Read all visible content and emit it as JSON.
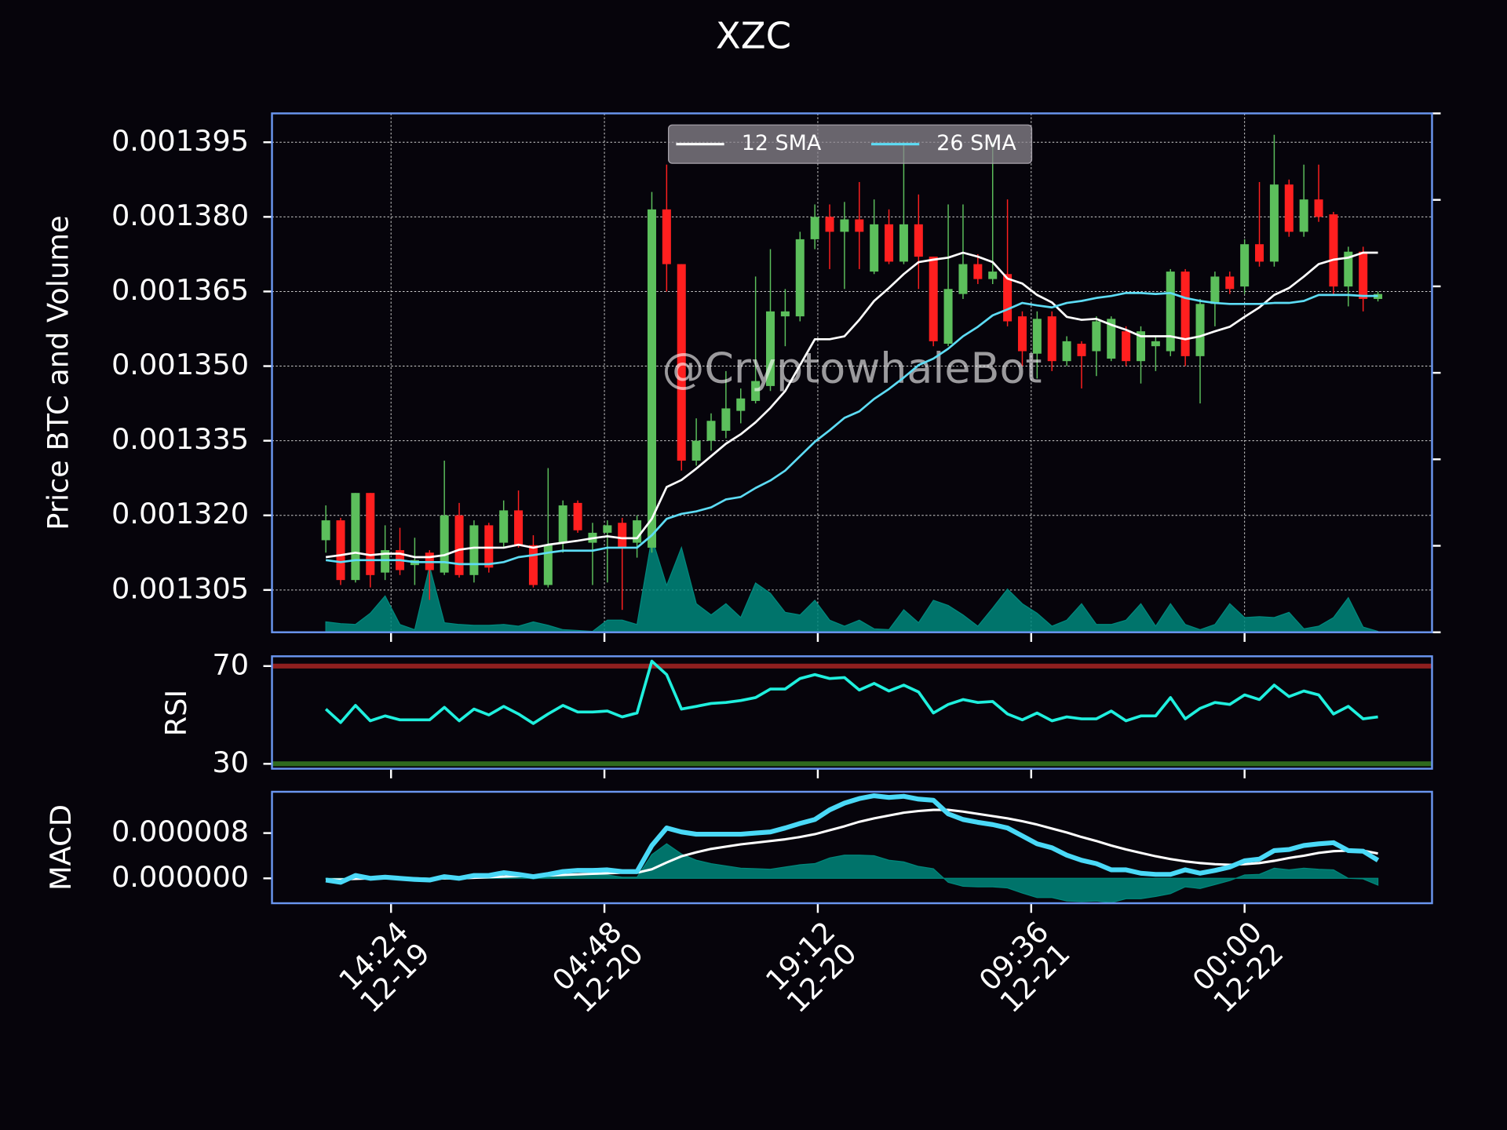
{
  "chart_data": [
    {
      "type": "candlestick",
      "title": "XZC",
      "ylabel": "Price BTC and Volume",
      "annotation": "@CryptowhaleBot",
      "x": [
        "12-19 10:00",
        "12-19 11:00",
        "12-19 12:00",
        "12-19 13:00",
        "12-19 14:00",
        "12-19 15:00",
        "12-19 16:00",
        "12-19 17:00",
        "12-19 18:00",
        "12-19 19:00",
        "12-19 20:00",
        "12-19 21:00",
        "12-19 22:00",
        "12-19 23:00",
        "12-20 00:00",
        "12-20 01:00",
        "12-20 02:00",
        "12-20 03:00",
        "12-20 04:00",
        "12-20 05:00",
        "12-20 06:00",
        "12-20 07:00",
        "12-20 08:00",
        "12-20 09:00",
        "12-20 10:00",
        "12-20 11:00",
        "12-20 12:00",
        "12-20 13:00",
        "12-20 14:00",
        "12-20 15:00",
        "12-20 16:00",
        "12-20 17:00",
        "12-20 18:00",
        "12-20 19:00",
        "12-20 20:00",
        "12-20 21:00",
        "12-20 22:00",
        "12-20 23:00",
        "12-21 00:00",
        "12-21 01:00",
        "12-21 02:00",
        "12-21 03:00",
        "12-21 04:00",
        "12-21 05:00",
        "12-21 06:00",
        "12-21 07:00",
        "12-21 08:00",
        "12-21 09:00",
        "12-21 10:00",
        "12-21 11:00",
        "12-21 12:00",
        "12-21 13:00",
        "12-21 14:00",
        "12-21 15:00",
        "12-21 16:00",
        "12-21 17:00",
        "12-21 18:00",
        "12-21 19:00",
        "12-21 20:00",
        "12-21 21:00",
        "12-21 22:00",
        "12-21 23:00",
        "12-22 00:00",
        "12-22 01:00",
        "12-22 02:00",
        "12-22 03:00",
        "12-22 04:00",
        "12-22 05:00",
        "12-22 06:00",
        "12-22 07:00",
        "12-22 08:00",
        "12-22 09:00"
      ],
      "open": [
        0.001315,
        0.001319,
        0.001307,
        0.0013245,
        0.0013085,
        0.001313,
        0.00131,
        0.0013125,
        0.0013085,
        0.00132,
        0.001308,
        0.001318,
        0.0013145,
        0.001321,
        0.001314,
        0.001306,
        0.0013145,
        0.0013225,
        0.0013145,
        0.0013165,
        0.0013185,
        0.0013145,
        0.0013135,
        0.0013815,
        0.0013705,
        0.001331,
        0.001335,
        0.001337,
        0.001341,
        0.001343,
        0.001346,
        0.00136,
        0.00136,
        0.0013755,
        0.00138,
        0.001377,
        0.0013795,
        0.001369,
        0.0013785,
        0.001371,
        0.0013785,
        0.001372,
        0.0013545,
        0.0013645,
        0.0013705,
        0.0013675,
        0.0013685,
        0.00136,
        0.0013525,
        0.00136,
        0.001351,
        0.0013545,
        0.001353,
        0.0013515,
        0.001357,
        0.001351,
        0.001354,
        0.001353,
        0.001369,
        0.001352,
        0.0013625,
        0.001368,
        0.001366,
        0.0013745,
        0.001371,
        0.0013865,
        0.001377,
        0.0013835,
        0.0013805,
        0.001366,
        0.001373,
        0.0013635
      ],
      "high": [
        0.001322,
        0.0013195,
        0.0013245,
        0.0013245,
        0.001318,
        0.0013175,
        0.0013155,
        0.001313,
        0.001331,
        0.0013225,
        0.001319,
        0.0013185,
        0.001323,
        0.001325,
        0.001316,
        0.0013295,
        0.001323,
        0.001323,
        0.0013185,
        0.001319,
        0.0013195,
        0.00132,
        0.001385,
        0.0013905,
        0.0013705,
        0.0013395,
        0.0013405,
        0.001349,
        0.0013455,
        0.001368,
        0.0013735,
        0.0013655,
        0.001377,
        0.0013825,
        0.0013825,
        0.001383,
        0.001387,
        0.0013835,
        0.0013815,
        0.001395,
        0.0013845,
        0.001372,
        0.0013825,
        0.0013825,
        0.0013725,
        0.001395,
        0.0013835,
        0.001361,
        0.001361,
        0.001361,
        0.001356,
        0.001355,
        0.00136,
        0.00136,
        0.001358,
        0.001358,
        0.001356,
        0.0013695,
        0.0013695,
        0.0013635,
        0.001369,
        0.001369,
        0.0013755,
        0.001387,
        0.0013965,
        0.0013875,
        0.0013905,
        0.0013905,
        0.001381,
        0.001374,
        0.001374,
        0.001365
      ],
      "low": [
        0.0013125,
        0.001306,
        0.0013065,
        0.0013055,
        0.001307,
        0.001308,
        0.001306,
        0.001303,
        0.001308,
        0.0013075,
        0.0013065,
        0.0013085,
        0.0013135,
        0.0013135,
        0.0013055,
        0.0013055,
        0.0013125,
        0.0013165,
        0.001306,
        0.0013065,
        0.001301,
        0.0013115,
        0.0013125,
        0.001365,
        0.001329,
        0.00133,
        0.001333,
        0.0013355,
        0.0013385,
        0.0013425,
        0.001345,
        0.001354,
        0.001359,
        0.0013735,
        0.0013695,
        0.0013655,
        0.0013695,
        0.0013685,
        0.0013705,
        0.0013705,
        0.0013655,
        0.001354,
        0.001354,
        0.0013635,
        0.0013665,
        0.0013665,
        0.001358,
        0.00135,
        0.0013475,
        0.001349,
        0.00135,
        0.0013455,
        0.001348,
        0.001351,
        0.00135,
        0.0013465,
        0.001349,
        0.001352,
        0.00135,
        0.0013425,
        0.001358,
        0.0013645,
        0.0013645,
        0.00137,
        0.00137,
        0.001376,
        0.001376,
        0.001379,
        0.0013645,
        0.001362,
        0.001361,
        0.001363
      ],
      "close": [
        0.001319,
        0.001307,
        0.0013245,
        0.001308,
        0.001313,
        0.001309,
        0.001311,
        0.001309,
        0.00132,
        0.001308,
        0.001318,
        0.0013095,
        0.001321,
        0.001314,
        0.001306,
        0.001314,
        0.001322,
        0.001317,
        0.0013165,
        0.001318,
        0.0013135,
        0.001319,
        0.0013815,
        0.0013705,
        0.001331,
        0.001335,
        0.001339,
        0.0013415,
        0.0013435,
        0.001347,
        0.001361,
        0.001361,
        0.0013755,
        0.00138,
        0.001377,
        0.0013795,
        0.001377,
        0.0013785,
        0.001371,
        0.0013785,
        0.001372,
        0.001355,
        0.0013655,
        0.0013705,
        0.0013675,
        0.001369,
        0.001359,
        0.001353,
        0.0013595,
        0.001351,
        0.001355,
        0.001352,
        0.001359,
        0.0013595,
        0.001351,
        0.001357,
        0.001355,
        0.001369,
        0.001352,
        0.0013625,
        0.001368,
        0.0013655,
        0.0013745,
        0.001371,
        0.0013865,
        0.001377,
        0.0013835,
        0.00138,
        0.001366,
        0.001373,
        0.0013635,
        0.0013645
      ],
      "up_color": "#5cbf5c",
      "down_color": "#ff1f1f",
      "series": [
        {
          "name": "12 SMA",
          "color": "#ffffff",
          "values": [
            0.0013116,
            0.001312,
            0.0013125,
            0.001312,
            0.0013123,
            0.0013123,
            0.0013116,
            0.0013116,
            0.001312,
            0.0013131,
            0.0013135,
            0.0013135,
            0.0013135,
            0.0013141,
            0.0013135,
            0.0013141,
            0.0013145,
            0.0013149,
            0.0013154,
            0.0013158,
            0.0013154,
            0.0013154,
            0.0013193,
            0.0013257,
            0.0013271,
            0.0013294,
            0.0013319,
            0.0013344,
            0.0013363,
            0.0013387,
            0.0013416,
            0.001345,
            0.0013502,
            0.0013554,
            0.0013554,
            0.001356,
            0.0013593,
            0.0013631,
            0.0013657,
            0.0013685,
            0.0013709,
            0.0013714,
            0.0013718,
            0.0013728,
            0.001372,
            0.0013709,
            0.0013676,
            0.0013666,
            0.0013643,
            0.0013628,
            0.0013599,
            0.0013593,
            0.0013595,
            0.0013583,
            0.0013573,
            0.001356,
            0.001356,
            0.001356,
            0.0013554,
            0.001356,
            0.001357,
            0.0013579,
            0.0013599,
            0.0013618,
            0.0013643,
            0.0013657,
            0.001368,
            0.0013705,
            0.0013714,
            0.0013718,
            0.0013728,
            0.0013728
          ]
        },
        {
          "name": "26 SMA",
          "color": "#5ddcf5",
          "values": [
            0.001311,
            0.0013106,
            0.001311,
            0.001311,
            0.001311,
            0.001311,
            0.0013106,
            0.0013106,
            0.0013106,
            0.0013102,
            0.0013102,
            0.0013102,
            0.0013106,
            0.0013116,
            0.001312,
            0.0013125,
            0.0013129,
            0.0013129,
            0.0013129,
            0.0013135,
            0.0013135,
            0.0013135,
            0.001316,
            0.0013193,
            0.0013203,
            0.0013208,
            0.0013216,
            0.0013232,
            0.0013237,
            0.0013255,
            0.001327,
            0.001329,
            0.0013319,
            0.0013348,
            0.0013371,
            0.0013396,
            0.0013409,
            0.0013434,
            0.0013454,
            0.0013477,
            0.0013502,
            0.0013515,
            0.0013535,
            0.001356,
            0.0013579,
            0.0013602,
            0.0013614,
            0.0013627,
            0.0013622,
            0.0013618,
            0.0013627,
            0.0013631,
            0.0013637,
            0.0013641,
            0.0013647,
            0.0013647,
            0.0013645,
            0.0013647,
            0.0013637,
            0.0013631,
            0.0013627,
            0.0013625,
            0.0013625,
            0.0013625,
            0.0013627,
            0.0013627,
            0.0013631,
            0.0013643,
            0.0013643,
            0.0013643,
            0.0013641,
            0.0013641
          ]
        }
      ],
      "volume": {
        "axis": "y2",
        "color": "#00887d",
        "values": [
          0.12,
          0.1,
          0.09,
          0.22,
          0.42,
          0.09,
          0.03,
          0.76,
          0.11,
          0.09,
          0.08,
          0.08,
          0.09,
          0.07,
          0.12,
          0.08,
          0.03,
          0.02,
          0.01,
          0.14,
          0.14,
          0.09,
          1.09,
          0.54,
          0.98,
          0.33,
          0.2,
          0.33,
          0.17,
          0.57,
          0.45,
          0.23,
          0.2,
          0.37,
          0.14,
          0.07,
          0.14,
          0.04,
          0.03,
          0.26,
          0.11,
          0.37,
          0.31,
          0.2,
          0.07,
          0.28,
          0.5,
          0.33,
          0.22,
          0.07,
          0.14,
          0.33,
          0.09,
          0.09,
          0.14,
          0.33,
          0.07,
          0.33,
          0.09,
          0.03,
          0.09,
          0.33,
          0.17,
          0.18,
          0.17,
          0.23,
          0.04,
          0.07,
          0.17,
          0.4,
          0.06,
          0.01
        ]
      },
      "xlim": [
        "12-19 06:22",
        "12-22 12:39"
      ],
      "ylim": [
        0.0012965,
        0.0014008
      ],
      "yticks": [
        0.001305,
        0.001335,
        {
          "value": 0.00132,
          "label": "0.001320"
        },
        {
          "value": 0.00135,
          "label": "0.001350"
        },
        0.001365,
        {
          "value": 0.00138,
          "label": "0.001380"
        },
        0.001395
      ],
      "y2lim": [
        0,
        6
      ],
      "y2ticks": [
        0,
        1,
        2,
        3,
        4,
        5,
        6
      ],
      "grid": true,
      "legend": "upper center"
    },
    {
      "type": "line",
      "ylabel": "RSI",
      "ylim": [
        28,
        74
      ],
      "yticks": [
        30,
        70
      ],
      "hlines": [
        {
          "value": 70,
          "color": "#8e1f1f"
        },
        {
          "value": 30,
          "color": "#2f6a1e"
        }
      ],
      "series": [
        {
          "color": "#1ff0de",
          "width": 3,
          "values": [
            52.4,
            46.9,
            53.9,
            47.6,
            49.6,
            48.0,
            48.0,
            48.0,
            53.1,
            47.6,
            52.4,
            50.0,
            53.5,
            50.4,
            46.5,
            50.4,
            53.9,
            51.2,
            51.2,
            51.6,
            49.2,
            50.8,
            72.0,
            66.5,
            52.4,
            53.5,
            54.7,
            55.1,
            55.9,
            57.1,
            60.6,
            60.6,
            64.9,
            66.5,
            64.9,
            65.3,
            60.2,
            62.9,
            59.8,
            62.2,
            59.4,
            50.8,
            54.3,
            56.3,
            55.1,
            55.5,
            50.4,
            48.0,
            50.8,
            47.6,
            49.2,
            48.4,
            48.4,
            51.6,
            47.6,
            49.6,
            49.6,
            57.1,
            48.4,
            52.7,
            55.1,
            54.3,
            58.2,
            56.3,
            62.2,
            57.5,
            59.8,
            58.2,
            50.4,
            53.5,
            48.4,
            49.2
          ]
        }
      ]
    },
    {
      "type": "line",
      "ylabel": "MACD",
      "ylim": [
        -4.4e-06,
        1.53e-05
      ],
      "yticks": [
        {
          "value": 0,
          "label": "0.000000"
        },
        8e-06
      ],
      "xticks": [
        {
          "value": "12-19 14:24",
          "label": "14:24\n12-19"
        },
        {
          "value": "12-20 04:48",
          "label": "04:48\n12-20"
        },
        {
          "value": "12-20 19:12",
          "label": "19:12\n12-20"
        },
        {
          "value": "12-21 09:36",
          "label": "09:36\n12-21"
        },
        {
          "value": "12-22 00:00",
          "label": "00:00\n12-22"
        }
      ],
      "series": [
        {
          "style": "area",
          "color": "#00877b",
          "values": [
            -1e-07,
            -5e-07,
            6e-07,
            0,
            2e-07,
            0,
            -2e-07,
            -2e-07,
            3e-07,
            0,
            4e-07,
            3e-07,
            7e-07,
            3e-07,
            -1e-07,
            2e-07,
            6e-07,
            7e-07,
            6e-07,
            6e-07,
            2e-07,
            2e-07,
            4.2e-06,
            6.1e-06,
            4.3e-06,
            3.2e-06,
            2.6e-06,
            2.2e-06,
            1.8e-06,
            1.7e-06,
            1.6e-06,
            2e-06,
            2.4e-06,
            2.6e-06,
            3.6e-06,
            4.1e-06,
            4.1e-06,
            4e-06,
            3.2e-06,
            2.9e-06,
            2.1e-06,
            1.7e-06,
            -7e-07,
            -1.4e-06,
            -1.5e-06,
            -1.5e-06,
            -1.7e-06,
            -2.6e-06,
            -3.4e-06,
            -3.4e-06,
            -4e-06,
            -4.1e-06,
            -4e-06,
            -4.3e-06,
            -3.6e-06,
            -3.6e-06,
            -3.2e-06,
            -2.7e-06,
            -1.5e-06,
            -1.8e-06,
            -1.1e-06,
            -4e-07,
            6e-07,
            7e-07,
            1.8e-06,
            1.5e-06,
            1.8e-06,
            1.6e-06,
            1.5e-06,
            0,
            -1e-07,
            -1.2e-06
          ]
        },
        {
          "style": "line",
          "color": "#ffffff",
          "width": 2.5,
          "values": [
            -2e-07,
            -2e-07,
            -1e-07,
            0,
            0,
            0,
            0,
            -1e-07,
            0,
            0,
            1e-07,
            2e-07,
            3e-07,
            4e-07,
            4e-07,
            5e-07,
            6e-07,
            7e-07,
            8e-07,
            9e-07,
            1e-06,
            1e-06,
            1.6e-06,
            2.8e-06,
            3.9e-06,
            4.6e-06,
            5.2e-06,
            5.6e-06,
            6e-06,
            6.3e-06,
            6.6e-06,
            6.9e-06,
            7.3e-06,
            7.8e-06,
            8.5e-06,
            9.2e-06,
            1e-05,
            1.06e-05,
            1.11e-05,
            1.16e-05,
            1.19e-05,
            1.21e-05,
            1.21e-05,
            1.18e-05,
            1.14e-05,
            1.1e-05,
            1.06e-05,
            1.01e-05,
            9.5e-06,
            8.8e-06,
            8.1e-06,
            7.3e-06,
            6.6e-06,
            5.8e-06,
            5.1e-06,
            4.5e-06,
            3.9e-06,
            3.4e-06,
            3e-06,
            2.7e-06,
            2.5e-06,
            2.4e-06,
            2.5e-06,
            2.7e-06,
            3.1e-06,
            3.6e-06,
            4e-06,
            4.5e-06,
            4.8e-06,
            4.9e-06,
            4.9e-06,
            4.4e-06
          ]
        },
        {
          "style": "line",
          "color": "#4ad9f7",
          "width": 5,
          "values": [
            -3e-07,
            -7e-07,
            5e-07,
            0,
            2e-07,
            0,
            -2e-07,
            -3e-07,
            3e-07,
            0,
            5e-07,
            5e-07,
            1e-06,
            7e-07,
            3e-07,
            7e-07,
            1.2e-06,
            1.4e-06,
            1.4e-06,
            1.5e-06,
            1.2e-06,
            1.2e-06,
            5.8e-06,
            8.9e-06,
            8.2e-06,
            7.8e-06,
            7.8e-06,
            7.8e-06,
            7.8e-06,
            8e-06,
            8.2e-06,
            8.9e-06,
            9.7e-06,
            1.04e-05,
            1.21e-05,
            1.33e-05,
            1.41e-05,
            1.46e-05,
            1.43e-05,
            1.45e-05,
            1.4e-05,
            1.38e-05,
            1.14e-05,
            1.04e-05,
            9.9e-06,
            9.5e-06,
            8.9e-06,
            7.5e-06,
            6.1e-06,
            5.4e-06,
            4.1e-06,
            3.2e-06,
            2.6e-06,
            1.5e-06,
            1.5e-06,
            9e-07,
            7e-07,
            7e-07,
            1.5e-06,
            9e-07,
            1.4e-06,
            2e-06,
            3.1e-06,
            3.4e-06,
            4.9e-06,
            5.1e-06,
            5.8e-06,
            6.1e-06,
            6.3e-06,
            4.9e-06,
            4.8e-06,
            3.2e-06
          ]
        }
      ]
    }
  ]
}
